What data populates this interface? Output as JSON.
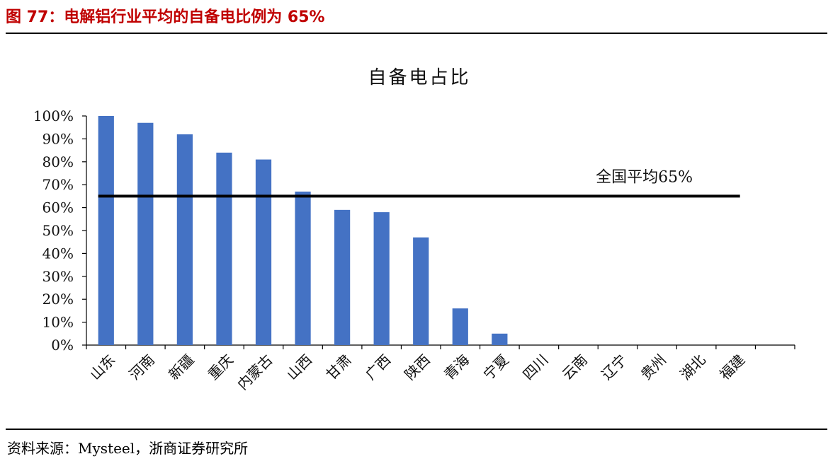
{
  "figure": {
    "title": "图 77：电解铝行业平均的自备电比例为 65%",
    "source": "资料来源：Mysteel，浙商证券研究所"
  },
  "colors": {
    "title_red": "#c00000",
    "bar": "#4472c4",
    "average_line": "#000000"
  },
  "chart_data": {
    "type": "bar",
    "title": "自备电占比",
    "categories": [
      "山东",
      "河南",
      "新疆",
      "重庆",
      "内蒙古",
      "山西",
      "甘肃",
      "广西",
      "陕西",
      "青海",
      "宁夏",
      "四川",
      "云南",
      "辽宁",
      "贵州",
      "湖北",
      "福建"
    ],
    "values": [
      1.0,
      0.97,
      0.92,
      0.84,
      0.81,
      0.67,
      0.59,
      0.58,
      0.47,
      0.16,
      0.05,
      0,
      0,
      0,
      0,
      0,
      0
    ],
    "ylim": [
      0,
      1
    ],
    "yticks": [
      "0%",
      "10%",
      "20%",
      "30%",
      "40%",
      "50%",
      "60%",
      "70%",
      "80%",
      "90%",
      "100%"
    ],
    "grid": false,
    "legend": "none",
    "reference_line": {
      "value": 0.65,
      "label": "全国平均65%"
    }
  }
}
